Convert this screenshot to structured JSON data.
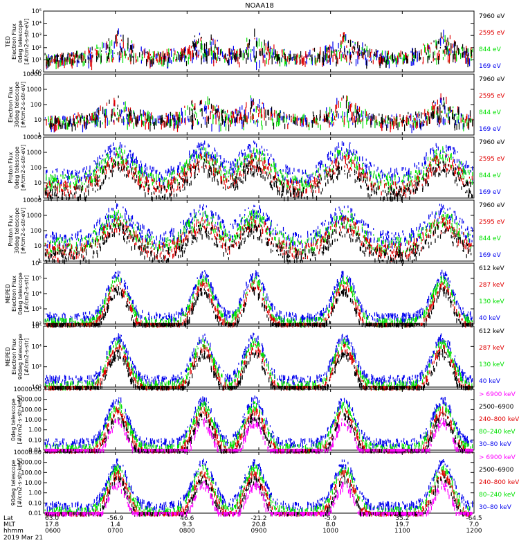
{
  "title": "NOAA18",
  "date": "2019 Mar 21",
  "colors": {
    "black": "#000000",
    "red": "#e00000",
    "green": "#00e000",
    "blue": "#0000ee",
    "magenta": "#ff00ff"
  },
  "footer": {
    "row_labels": [
      "Lat",
      "MLT",
      "hhmm"
    ],
    "columns": [
      {
        "lat": "63.0",
        "mlt": "17.8",
        "hhmm": "0600"
      },
      {
        "lat": "-56.9",
        "mlt": "1.4",
        "hhmm": "0700"
      },
      {
        "lat": "46.6",
        "mlt": "9.3",
        "hhmm": "0800"
      },
      {
        "lat": "-21.2",
        "mlt": "20.8",
        "hhmm": "0900"
      },
      {
        "lat": "-5.9",
        "mlt": "8.0",
        "hhmm": "1000"
      },
      {
        "lat": "35.2",
        "mlt": "19.7",
        "hhmm": "1100"
      },
      {
        "lat": "-64.5",
        "mlt": "7.0",
        "hhmm": "1200"
      }
    ]
  },
  "chart_data": [
    {
      "type": "scatter",
      "ylabel": [
        "TED",
        "Electron Flux",
        "0deg telescope",
        "[#/cm2-s-str-eV]"
      ],
      "yticks": [
        "10⁰",
        "10¹",
        "10²",
        "10³",
        "10⁴",
        "10⁵"
      ],
      "legend": [
        {
          "text": "7960 eV",
          "color": "black"
        },
        {
          "text": "2595 eV",
          "color": "red"
        },
        {
          "text": "844 eV",
          "color": "green"
        },
        {
          "text": "169 eV",
          "color": "blue"
        }
      ]
    },
    {
      "type": "scatter",
      "ylabel": [
        "Electron Flux",
        "30deg telescope",
        "[#/cm2-s-str-eV]"
      ],
      "yticks": [
        "1",
        "10",
        "100",
        "1000",
        "10000"
      ],
      "legend": [
        {
          "text": "7960 eV",
          "color": "black"
        },
        {
          "text": "2595 eV",
          "color": "red"
        },
        {
          "text": "844 eV",
          "color": "green"
        },
        {
          "text": "169 eV",
          "color": "blue"
        }
      ]
    },
    {
      "type": "scatter",
      "ylabel": [
        "Proton Flux",
        "0deg telescope",
        "[#/cm2-s-str-eV]"
      ],
      "yticks": [
        "1",
        "10",
        "100",
        "1000",
        "10000"
      ],
      "legend": [
        {
          "text": "7960 eV",
          "color": "black"
        },
        {
          "text": "2595 eV",
          "color": "red"
        },
        {
          "text": "844 eV",
          "color": "green"
        },
        {
          "text": "169 eV",
          "color": "blue"
        }
      ]
    },
    {
      "type": "scatter",
      "ylabel": [
        "Proton Flux",
        "30deg telescope",
        "[#/cm2-s-str-eV]"
      ],
      "yticks": [
        "1",
        "10",
        "100",
        "1000",
        "10000"
      ],
      "legend": [
        {
          "text": "7960 eV",
          "color": "black"
        },
        {
          "text": "2595 eV",
          "color": "red"
        },
        {
          "text": "844 eV",
          "color": "green"
        },
        {
          "text": "169 eV",
          "color": "blue"
        }
      ]
    },
    {
      "type": "scatter",
      "ylabel": [
        "MEPED",
        "Electron Flux",
        "0deg telescope",
        "[#/cm2-s-str]"
      ],
      "yticks": [
        "10²",
        "10³",
        "10⁴",
        "10⁵",
        "10⁶"
      ],
      "legend": [
        {
          "text": "612 keV",
          "color": "black"
        },
        {
          "text": "287 keV",
          "color": "red"
        },
        {
          "text": "130 keV",
          "color": "green"
        },
        {
          "text": "40 keV",
          "color": "blue"
        }
      ]
    },
    {
      "type": "scatter",
      "ylabel": [
        "MEPED",
        "Electron Flux",
        "90deg telescope",
        "[#/cm2-s-str]"
      ],
      "yticks": [
        "10²",
        "10³",
        "10⁴",
        "10⁵"
      ],
      "legend": [
        {
          "text": "612 keV",
          "color": "black"
        },
        {
          "text": "287 keV",
          "color": "red"
        },
        {
          "text": "130 keV",
          "color": "green"
        },
        {
          "text": "40 keV",
          "color": "blue"
        }
      ]
    },
    {
      "type": "scatter",
      "ylabel": [
        "0deg telescope",
        "[#/cm2-s-str-keV]"
      ],
      "yticks": [
        "0.01",
        "0.10",
        "1.00",
        "10.00",
        "100.00",
        "1000.00",
        "10000.00"
      ],
      "legend": [
        {
          "text": "> 6900 keV",
          "color": "magenta"
        },
        {
          "text": "2500–6900",
          "color": "black"
        },
        {
          "text": "240–800 keV",
          "color": "red"
        },
        {
          "text": "80–240 keV",
          "color": "green"
        },
        {
          "text": "30–80 keV",
          "color": "blue"
        }
      ]
    },
    {
      "type": "scatter",
      "ylabel": [
        "90deg telescope",
        "[#/cm2-s-str-keV]"
      ],
      "yticks": [
        "0.01",
        "0.10",
        "1.00",
        "10.00",
        "100.00",
        "1000.00",
        "10000.00"
      ],
      "legend": [
        {
          "text": "> 6900 keV",
          "color": "magenta"
        },
        {
          "text": "2500–6900",
          "color": "black"
        },
        {
          "text": "240–800 keV",
          "color": "red"
        },
        {
          "text": "80–240 keV",
          "color": "green"
        },
        {
          "text": "30–80 keV",
          "color": "blue"
        }
      ]
    }
  ]
}
